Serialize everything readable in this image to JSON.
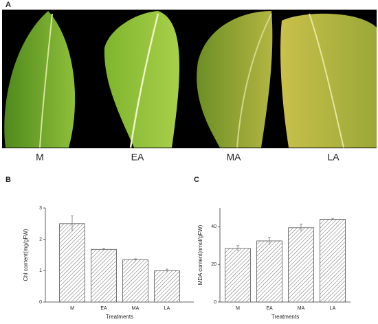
{
  "panel_labels": [
    "A",
    "B",
    "C"
  ],
  "photo": {
    "labels": [
      "M",
      "EA",
      "MA",
      "LA"
    ]
  },
  "chart_data": [
    {
      "type": "bar",
      "categories": [
        "M",
        "EA",
        "MA",
        "LA"
      ],
      "values": [
        2.5,
        1.68,
        1.35,
        1.0
      ],
      "errors": [
        0.25,
        0.04,
        0.03,
        0.05
      ],
      "ylim": [
        0,
        3
      ],
      "yticks": [
        0,
        1,
        2,
        3
      ],
      "ylabel": "Chl content(mg/gFW)",
      "xlabel": "Treatments",
      "color": "#555555"
    },
    {
      "type": "bar",
      "categories": [
        "M",
        "EA",
        "MA",
        "LA"
      ],
      "values": [
        28.5,
        32.5,
        39.5,
        44
      ],
      "errors": [
        1.5,
        2,
        2,
        0.5
      ],
      "ylim": [
        0,
        50
      ],
      "yticks": [
        0,
        20,
        40
      ],
      "ylabel": "MDA content(nmol/gFW)",
      "xlabel": "Treatments",
      "color": "#555555"
    }
  ]
}
